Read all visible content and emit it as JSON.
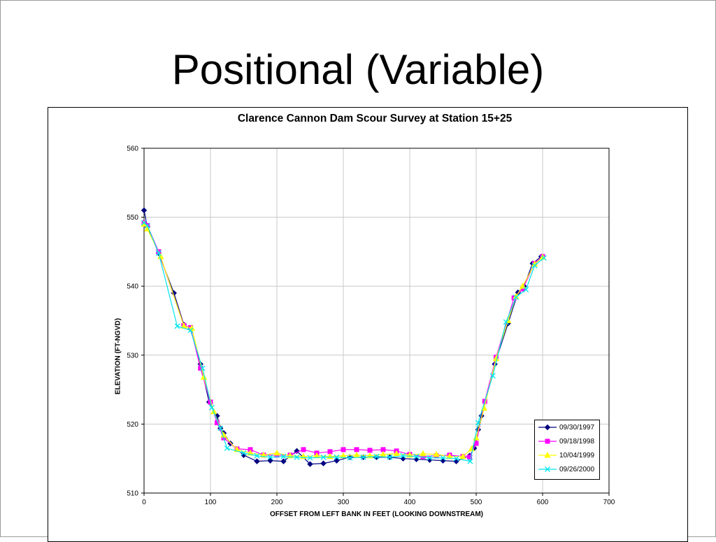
{
  "slide": {
    "title": "Positional (Variable)"
  },
  "chart_data": {
    "type": "line",
    "title": "Clarence Cannon Dam Scour Survey at Station 15+25",
    "xlabel": "OFFSET FROM LEFT BANK IN FEET  (LOOKING DOWNSTREAM)",
    "ylabel": "ELEVATION (FT-NGVD)",
    "xlim": [
      0,
      700
    ],
    "ylim": [
      510,
      560
    ],
    "xticks": [
      0,
      100,
      200,
      300,
      400,
      500,
      600,
      700
    ],
    "yticks": [
      510,
      520,
      530,
      540,
      550,
      560
    ],
    "grid": true,
    "legend_position": "bottom-right",
    "series": [
      {
        "name": "09/30/1997",
        "color": "#000080",
        "marker": "diamond",
        "points": [
          [
            0,
            551
          ],
          [
            5,
            548.6
          ],
          [
            22,
            544.8
          ],
          [
            45,
            539
          ],
          [
            60,
            534.4
          ],
          [
            70,
            533.8
          ],
          [
            85,
            528.7
          ],
          [
            98,
            523.2
          ],
          [
            110,
            521.2
          ],
          [
            115,
            519.4
          ],
          [
            120,
            518.7
          ],
          [
            130,
            517.2
          ],
          [
            150,
            515.5
          ],
          [
            170,
            514.6
          ],
          [
            190,
            514.7
          ],
          [
            210,
            514.6
          ],
          [
            230,
            516.1
          ],
          [
            250,
            514.2
          ],
          [
            270,
            514.3
          ],
          [
            290,
            514.7
          ],
          [
            310,
            515.2
          ],
          [
            330,
            515.2
          ],
          [
            350,
            515.2
          ],
          [
            370,
            515.2
          ],
          [
            390,
            515
          ],
          [
            410,
            514.9
          ],
          [
            430,
            514.8
          ],
          [
            450,
            514.7
          ],
          [
            470,
            514.6
          ],
          [
            490,
            515.4
          ],
          [
            497,
            516.5
          ],
          [
            503,
            519.2
          ],
          [
            508,
            521.2
          ],
          [
            528,
            528.7
          ],
          [
            548,
            534.6
          ],
          [
            563,
            539.1
          ],
          [
            572,
            540
          ],
          [
            585,
            543.3
          ],
          [
            598,
            544.3
          ]
        ]
      },
      {
        "name": "09/18/1998",
        "color": "#ff00ff",
        "marker": "square",
        "points": [
          [
            0,
            549.2
          ],
          [
            5,
            548.8
          ],
          [
            22,
            545
          ],
          [
            60,
            534.3
          ],
          [
            70,
            534
          ],
          [
            85,
            528.1
          ],
          [
            100,
            523.2
          ],
          [
            110,
            520.2
          ],
          [
            120,
            518
          ],
          [
            140,
            516.4
          ],
          [
            160,
            516.3
          ],
          [
            180,
            515.5
          ],
          [
            200,
            515.5
          ],
          [
            220,
            515.5
          ],
          [
            240,
            516.3
          ],
          [
            260,
            515.8
          ],
          [
            280,
            516
          ],
          [
            300,
            516.3
          ],
          [
            320,
            516.3
          ],
          [
            340,
            516.2
          ],
          [
            360,
            516.3
          ],
          [
            380,
            516.1
          ],
          [
            400,
            515.6
          ],
          [
            420,
            515.3
          ],
          [
            440,
            515.4
          ],
          [
            460,
            515.5
          ],
          [
            480,
            515.3
          ],
          [
            490,
            515.2
          ],
          [
            500,
            517.2
          ],
          [
            513,
            523.3
          ],
          [
            530,
            529.7
          ],
          [
            557,
            538.3
          ],
          [
            570,
            539.6
          ],
          [
            588,
            543.3
          ],
          [
            600,
            544.3
          ]
        ]
      },
      {
        "name": "10/04/1999",
        "color": "#ffff00",
        "marker": "triangle",
        "points": [
          [
            0,
            549
          ],
          [
            5,
            548.3
          ],
          [
            25,
            544.3
          ],
          [
            60,
            534.2
          ],
          [
            72,
            533.9
          ],
          [
            90,
            526.8
          ],
          [
            105,
            521.8
          ],
          [
            120,
            518.4
          ],
          [
            140,
            516.3
          ],
          [
            160,
            515.8
          ],
          [
            180,
            515.5
          ],
          [
            200,
            515.8
          ],
          [
            220,
            515.4
          ],
          [
            240,
            515.3
          ],
          [
            260,
            515.4
          ],
          [
            280,
            515.3
          ],
          [
            300,
            515.4
          ],
          [
            320,
            515.5
          ],
          [
            340,
            515.4
          ],
          [
            360,
            515.6
          ],
          [
            380,
            515.7
          ],
          [
            400,
            515.5
          ],
          [
            420,
            515.7
          ],
          [
            440,
            515.6
          ],
          [
            460,
            515.3
          ],
          [
            480,
            515.3
          ],
          [
            493,
            516.4
          ],
          [
            500,
            518
          ],
          [
            512,
            522.3
          ],
          [
            530,
            529.5
          ],
          [
            548,
            535
          ],
          [
            560,
            538.5
          ],
          [
            570,
            540
          ],
          [
            588,
            543.2
          ],
          [
            600,
            544.2
          ]
        ]
      },
      {
        "name": "09/26/2000",
        "color": "#00e5ee",
        "marker": "x",
        "points": [
          [
            0,
            549.2
          ],
          [
            5,
            548.8
          ],
          [
            22,
            544.8
          ],
          [
            50,
            534.2
          ],
          [
            70,
            533.6
          ],
          [
            88,
            528.1
          ],
          [
            102,
            522.4
          ],
          [
            115,
            519.4
          ],
          [
            125,
            516.5
          ],
          [
            150,
            515.8
          ],
          [
            170,
            515.4
          ],
          [
            190,
            515.2
          ],
          [
            210,
            515.3
          ],
          [
            230,
            515.2
          ],
          [
            250,
            515.1
          ],
          [
            270,
            515.2
          ],
          [
            290,
            515.2
          ],
          [
            310,
            515.1
          ],
          [
            330,
            515.2
          ],
          [
            350,
            515.3
          ],
          [
            370,
            515.2
          ],
          [
            390,
            515.4
          ],
          [
            410,
            515.3
          ],
          [
            430,
            515.1
          ],
          [
            450,
            515.1
          ],
          [
            470,
            515
          ],
          [
            491,
            514.6
          ],
          [
            503,
            520.2
          ],
          [
            525,
            527
          ],
          [
            545,
            534.8
          ],
          [
            560,
            538.4
          ],
          [
            575,
            539.5
          ],
          [
            588,
            543
          ],
          [
            602,
            544.1
          ]
        ]
      }
    ]
  }
}
